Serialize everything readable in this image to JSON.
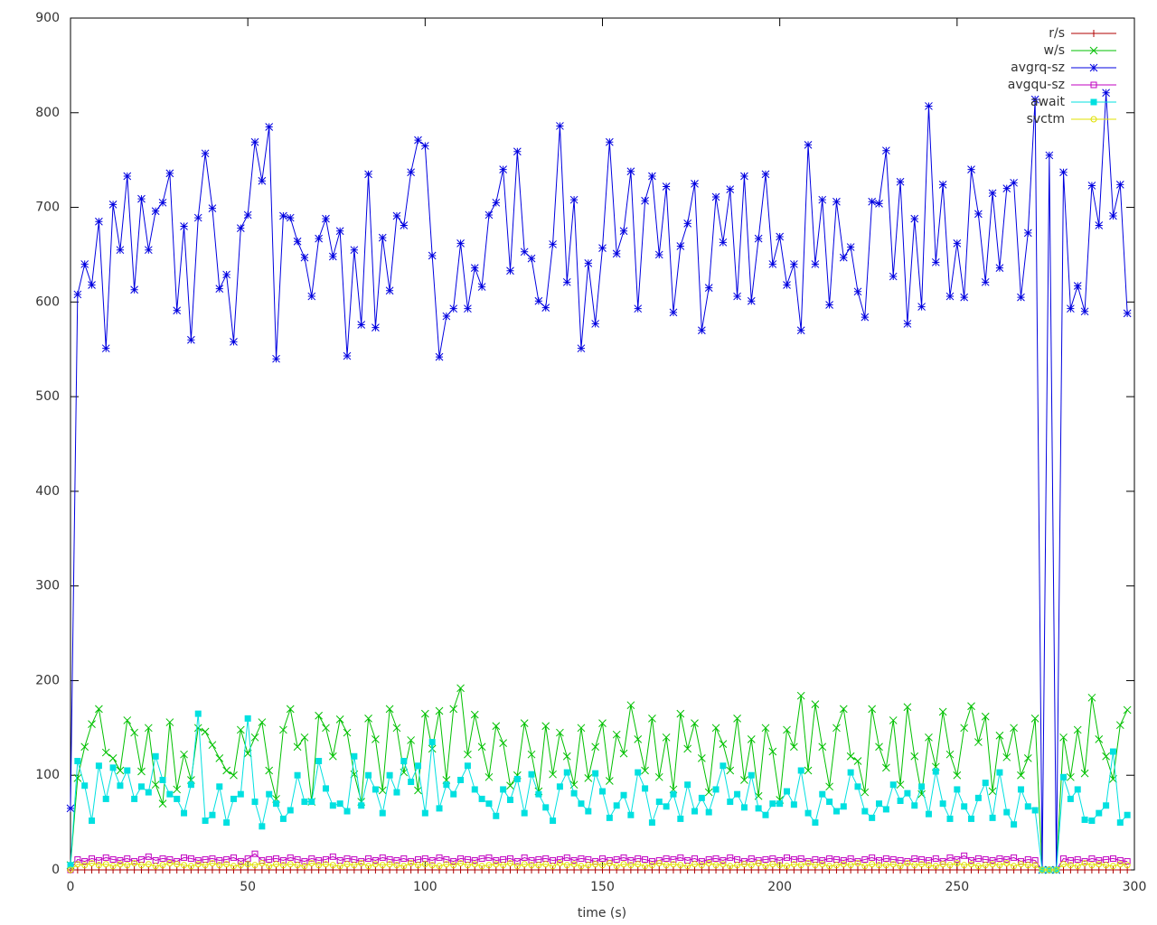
{
  "chart_data": {
    "type": "line",
    "xlabel": "time (s)",
    "xlim": [
      0,
      300
    ],
    "xticks": [
      0,
      50,
      100,
      150,
      200,
      250,
      300
    ],
    "ylim": [
      0,
      900
    ],
    "yticks": [
      0,
      100,
      200,
      300,
      400,
      500,
      600,
      700,
      800,
      900
    ],
    "grid": false,
    "legend": "top-right",
    "x": [
      0,
      2,
      4,
      6,
      8,
      10,
      12,
      14,
      16,
      18,
      20,
      22,
      24,
      26,
      28,
      30,
      32,
      34,
      36,
      38,
      40,
      42,
      44,
      46,
      48,
      50,
      52,
      54,
      56,
      58,
      60,
      62,
      64,
      66,
      68,
      70,
      72,
      74,
      76,
      78,
      80,
      82,
      84,
      86,
      88,
      90,
      92,
      94,
      96,
      98,
      100,
      102,
      104,
      106,
      108,
      110,
      112,
      114,
      116,
      118,
      120,
      122,
      124,
      126,
      128,
      130,
      132,
      134,
      136,
      138,
      140,
      142,
      144,
      146,
      148,
      150,
      152,
      154,
      156,
      158,
      160,
      162,
      164,
      166,
      168,
      170,
      172,
      174,
      176,
      178,
      180,
      182,
      184,
      186,
      188,
      190,
      192,
      194,
      196,
      198,
      200,
      202,
      204,
      206,
      208,
      210,
      212,
      214,
      216,
      218,
      220,
      222,
      224,
      226,
      228,
      230,
      232,
      234,
      236,
      238,
      240,
      242,
      244,
      246,
      248,
      250,
      252,
      254,
      256,
      258,
      260,
      262,
      264,
      266,
      268,
      270,
      272,
      274,
      276,
      278,
      280,
      282,
      284,
      286,
      288,
      290,
      292,
      294,
      296,
      298
    ],
    "series": [
      {
        "name": "r/s",
        "color": "#b00000",
        "marker": "plus",
        "values": [
          0,
          0,
          0,
          0,
          0,
          0,
          0,
          0,
          0,
          0,
          0,
          0,
          0,
          0,
          0,
          0,
          0,
          0,
          0,
          0,
          0,
          0,
          0,
          0,
          0,
          0,
          0,
          0,
          0,
          0,
          0,
          0,
          0,
          0,
          0,
          0,
          0,
          0,
          0,
          0,
          0,
          0,
          0,
          0,
          0,
          0,
          0,
          0,
          0,
          0,
          0,
          0,
          0,
          0,
          0,
          0,
          0,
          0,
          0,
          0,
          0,
          0,
          0,
          0,
          0,
          0,
          0,
          0,
          0,
          0,
          0,
          0,
          0,
          0,
          0,
          0,
          0,
          0,
          0,
          0,
          0,
          0,
          0,
          0,
          0,
          0,
          0,
          0,
          0,
          0,
          0,
          0,
          0,
          0,
          0,
          0,
          0,
          0,
          0,
          0,
          0,
          0,
          0,
          0,
          0,
          0,
          0,
          0,
          0,
          0,
          0,
          0,
          0,
          0,
          0,
          0,
          0,
          0,
          0,
          0,
          0,
          0,
          0,
          0,
          0,
          0,
          0,
          0,
          0,
          0,
          0,
          0,
          0,
          0,
          0,
          0,
          0,
          0,
          0,
          0,
          0,
          0,
          0,
          0,
          0,
          0,
          0,
          0,
          0,
          0
        ]
      },
      {
        "name": "w/s",
        "color": "#00c000",
        "marker": "cross",
        "values": [
          5,
          97,
          130,
          154,
          170,
          124,
          118,
          105,
          158,
          145,
          104,
          150,
          90,
          70,
          156,
          85,
          122,
          95,
          150,
          146,
          132,
          118,
          105,
          100,
          148,
          123,
          140,
          156,
          105,
          75,
          148,
          170,
          130,
          140,
          72,
          163,
          150,
          120,
          159,
          145,
          101,
          72,
          160,
          138,
          84,
          170,
          150,
          103,
          137,
          84,
          165,
          128,
          168,
          95,
          170,
          192,
          122,
          164,
          130,
          98,
          152,
          134,
          89,
          100,
          155,
          122,
          83,
          152,
          101,
          145,
          120,
          90,
          150,
          97,
          130,
          155,
          94,
          143,
          123,
          174,
          138,
          105,
          160,
          98,
          140,
          85,
          165,
          128,
          155,
          118,
          82,
          150,
          133,
          105,
          160,
          95,
          138,
          78,
          150,
          125,
          74,
          148,
          130,
          184,
          105,
          175,
          130,
          88,
          150,
          170,
          120,
          115,
          82,
          170,
          130,
          108,
          158,
          90,
          172,
          120,
          80,
          140,
          109,
          167,
          122,
          100,
          150,
          173,
          135,
          162,
          83,
          142,
          119,
          150,
          100,
          118,
          160,
          0,
          0,
          0,
          140,
          98,
          148,
          102,
          182,
          138,
          120,
          96,
          153,
          169
        ]
      },
      {
        "name": "avgrq-sz",
        "color": "#0000e0",
        "marker": "star",
        "values": [
          65,
          608,
          640,
          618,
          685,
          551,
          703,
          655,
          733,
          613,
          709,
          655,
          696,
          705,
          736,
          591,
          680,
          560,
          689,
          757,
          699,
          614,
          629,
          558,
          678,
          692,
          769,
          728,
          785,
          540,
          691,
          689,
          664,
          647,
          606,
          667,
          688,
          648,
          675,
          543,
          655,
          576,
          735,
          573,
          668,
          612,
          691,
          681,
          737,
          771,
          765,
          649,
          542,
          585,
          593,
          662,
          593,
          636,
          616,
          692,
          705,
          740,
          633,
          759,
          653,
          646,
          601,
          594,
          661,
          786,
          621,
          708,
          551,
          641,
          577,
          657,
          769,
          651,
          675,
          738,
          593,
          707,
          733,
          650,
          722,
          589,
          659,
          683,
          725,
          570,
          615,
          711,
          663,
          719,
          606,
          733,
          601,
          667,
          735,
          640,
          669,
          618,
          640,
          570,
          766,
          640,
          708,
          597,
          706,
          647,
          658,
          611,
          584,
          706,
          704,
          760,
          627,
          727,
          577,
          688,
          595,
          807,
          642,
          724,
          606,
          662,
          605,
          740,
          693,
          621,
          715,
          636,
          720,
          726,
          605,
          673,
          814,
          0,
          755,
          0,
          737,
          593,
          617,
          590,
          723,
          681,
          821,
          691,
          724,
          588
        ]
      },
      {
        "name": "avgqu-sz",
        "color": "#c000c0",
        "marker": "box",
        "values": [
          0,
          11,
          9,
          12,
          10,
          13,
          11,
          10,
          12,
          9,
          11,
          14,
          10,
          12,
          11,
          9,
          13,
          12,
          10,
          11,
          12,
          10,
          11,
          13,
          9,
          12,
          17,
          10,
          11,
          12,
          10,
          13,
          11,
          9,
          12,
          10,
          11,
          14,
          10,
          12,
          11,
          9,
          12,
          10,
          13,
          11,
          10,
          12,
          9,
          11,
          12,
          10,
          13,
          11,
          9,
          12,
          11,
          10,
          12,
          13,
          10,
          11,
          12,
          9,
          13,
          10,
          11,
          12,
          10,
          11,
          13,
          10,
          12,
          11,
          9,
          12,
          10,
          11,
          13,
          10,
          12,
          11,
          9,
          10,
          12,
          11,
          13,
          10,
          12,
          9,
          11,
          12,
          10,
          13,
          11,
          9,
          12,
          10,
          11,
          12,
          10,
          13,
          11,
          12,
          9,
          11,
          10,
          12,
          11,
          10,
          12,
          9,
          11,
          13,
          10,
          12,
          11,
          10,
          9,
          12,
          11,
          10,
          12,
          9,
          13,
          11,
          15,
          10,
          12,
          11,
          10,
          12,
          11,
          13,
          9,
          11,
          10,
          0,
          0,
          0,
          12,
          10,
          11,
          9,
          12,
          10,
          11,
          12,
          10,
          9
        ]
      },
      {
        "name": "await",
        "color": "#00e0e0",
        "marker": "fbox",
        "values": [
          5,
          115,
          89,
          52,
          110,
          75,
          108,
          89,
          105,
          75,
          88,
          82,
          120,
          95,
          80,
          75,
          60,
          90,
          165,
          52,
          58,
          88,
          50,
          75,
          80,
          160,
          72,
          46,
          80,
          70,
          54,
          63,
          100,
          72,
          72,
          115,
          86,
          68,
          70,
          62,
          120,
          68,
          100,
          85,
          60,
          100,
          82,
          115,
          93,
          110,
          60,
          135,
          65,
          90,
          80,
          95,
          110,
          85,
          75,
          70,
          57,
          85,
          74,
          96,
          60,
          101,
          80,
          66,
          52,
          88,
          103,
          81,
          70,
          62,
          102,
          83,
          55,
          68,
          79,
          58,
          103,
          86,
          50,
          72,
          67,
          80,
          54,
          90,
          62,
          76,
          61,
          85,
          110,
          72,
          80,
          66,
          100,
          65,
          58,
          70,
          70,
          83,
          69,
          105,
          60,
          50,
          80,
          72,
          62,
          67,
          103,
          88,
          62,
          55,
          70,
          64,
          90,
          73,
          81,
          68,
          88,
          59,
          104,
          70,
          54,
          85,
          67,
          54,
          76,
          92,
          55,
          103,
          61,
          48,
          85,
          67,
          63,
          0,
          0,
          0,
          98,
          75,
          85,
          53,
          52,
          60,
          68,
          125,
          50,
          58
        ]
      },
      {
        "name": "svctm",
        "color": "#e0e000",
        "marker": "circle",
        "values": [
          0,
          6,
          5,
          7,
          5,
          6,
          4,
          6,
          5,
          7,
          5,
          6,
          4,
          5,
          7,
          6,
          5,
          4,
          6,
          5,
          7,
          5,
          6,
          4,
          5,
          6,
          5,
          7,
          4,
          6,
          5,
          6,
          5,
          4,
          7,
          5,
          6,
          5,
          4,
          6,
          5,
          7,
          4,
          6,
          5,
          6,
          5,
          4,
          7,
          5,
          6,
          5,
          4,
          6,
          5,
          7,
          5,
          6,
          4,
          5,
          6,
          5,
          7,
          4,
          6,
          5,
          5,
          6,
          4,
          7,
          5,
          6,
          4,
          5,
          6,
          5,
          7,
          4,
          6,
          5,
          6,
          4,
          5,
          7,
          5,
          6,
          5,
          4,
          6,
          5,
          7,
          5,
          6,
          4,
          5,
          6,
          5,
          7,
          4,
          6,
          5,
          4,
          6,
          5,
          7,
          5,
          6,
          4,
          5,
          6,
          5,
          7,
          4,
          6,
          5,
          5,
          6,
          4,
          7,
          5,
          6,
          5,
          4,
          6,
          5,
          7,
          5,
          6,
          4,
          5,
          6,
          5,
          7,
          4,
          6,
          5,
          5,
          0,
          0,
          0,
          6,
          5,
          4,
          7,
          5,
          6,
          5,
          4,
          6,
          5
        ]
      }
    ]
  }
}
